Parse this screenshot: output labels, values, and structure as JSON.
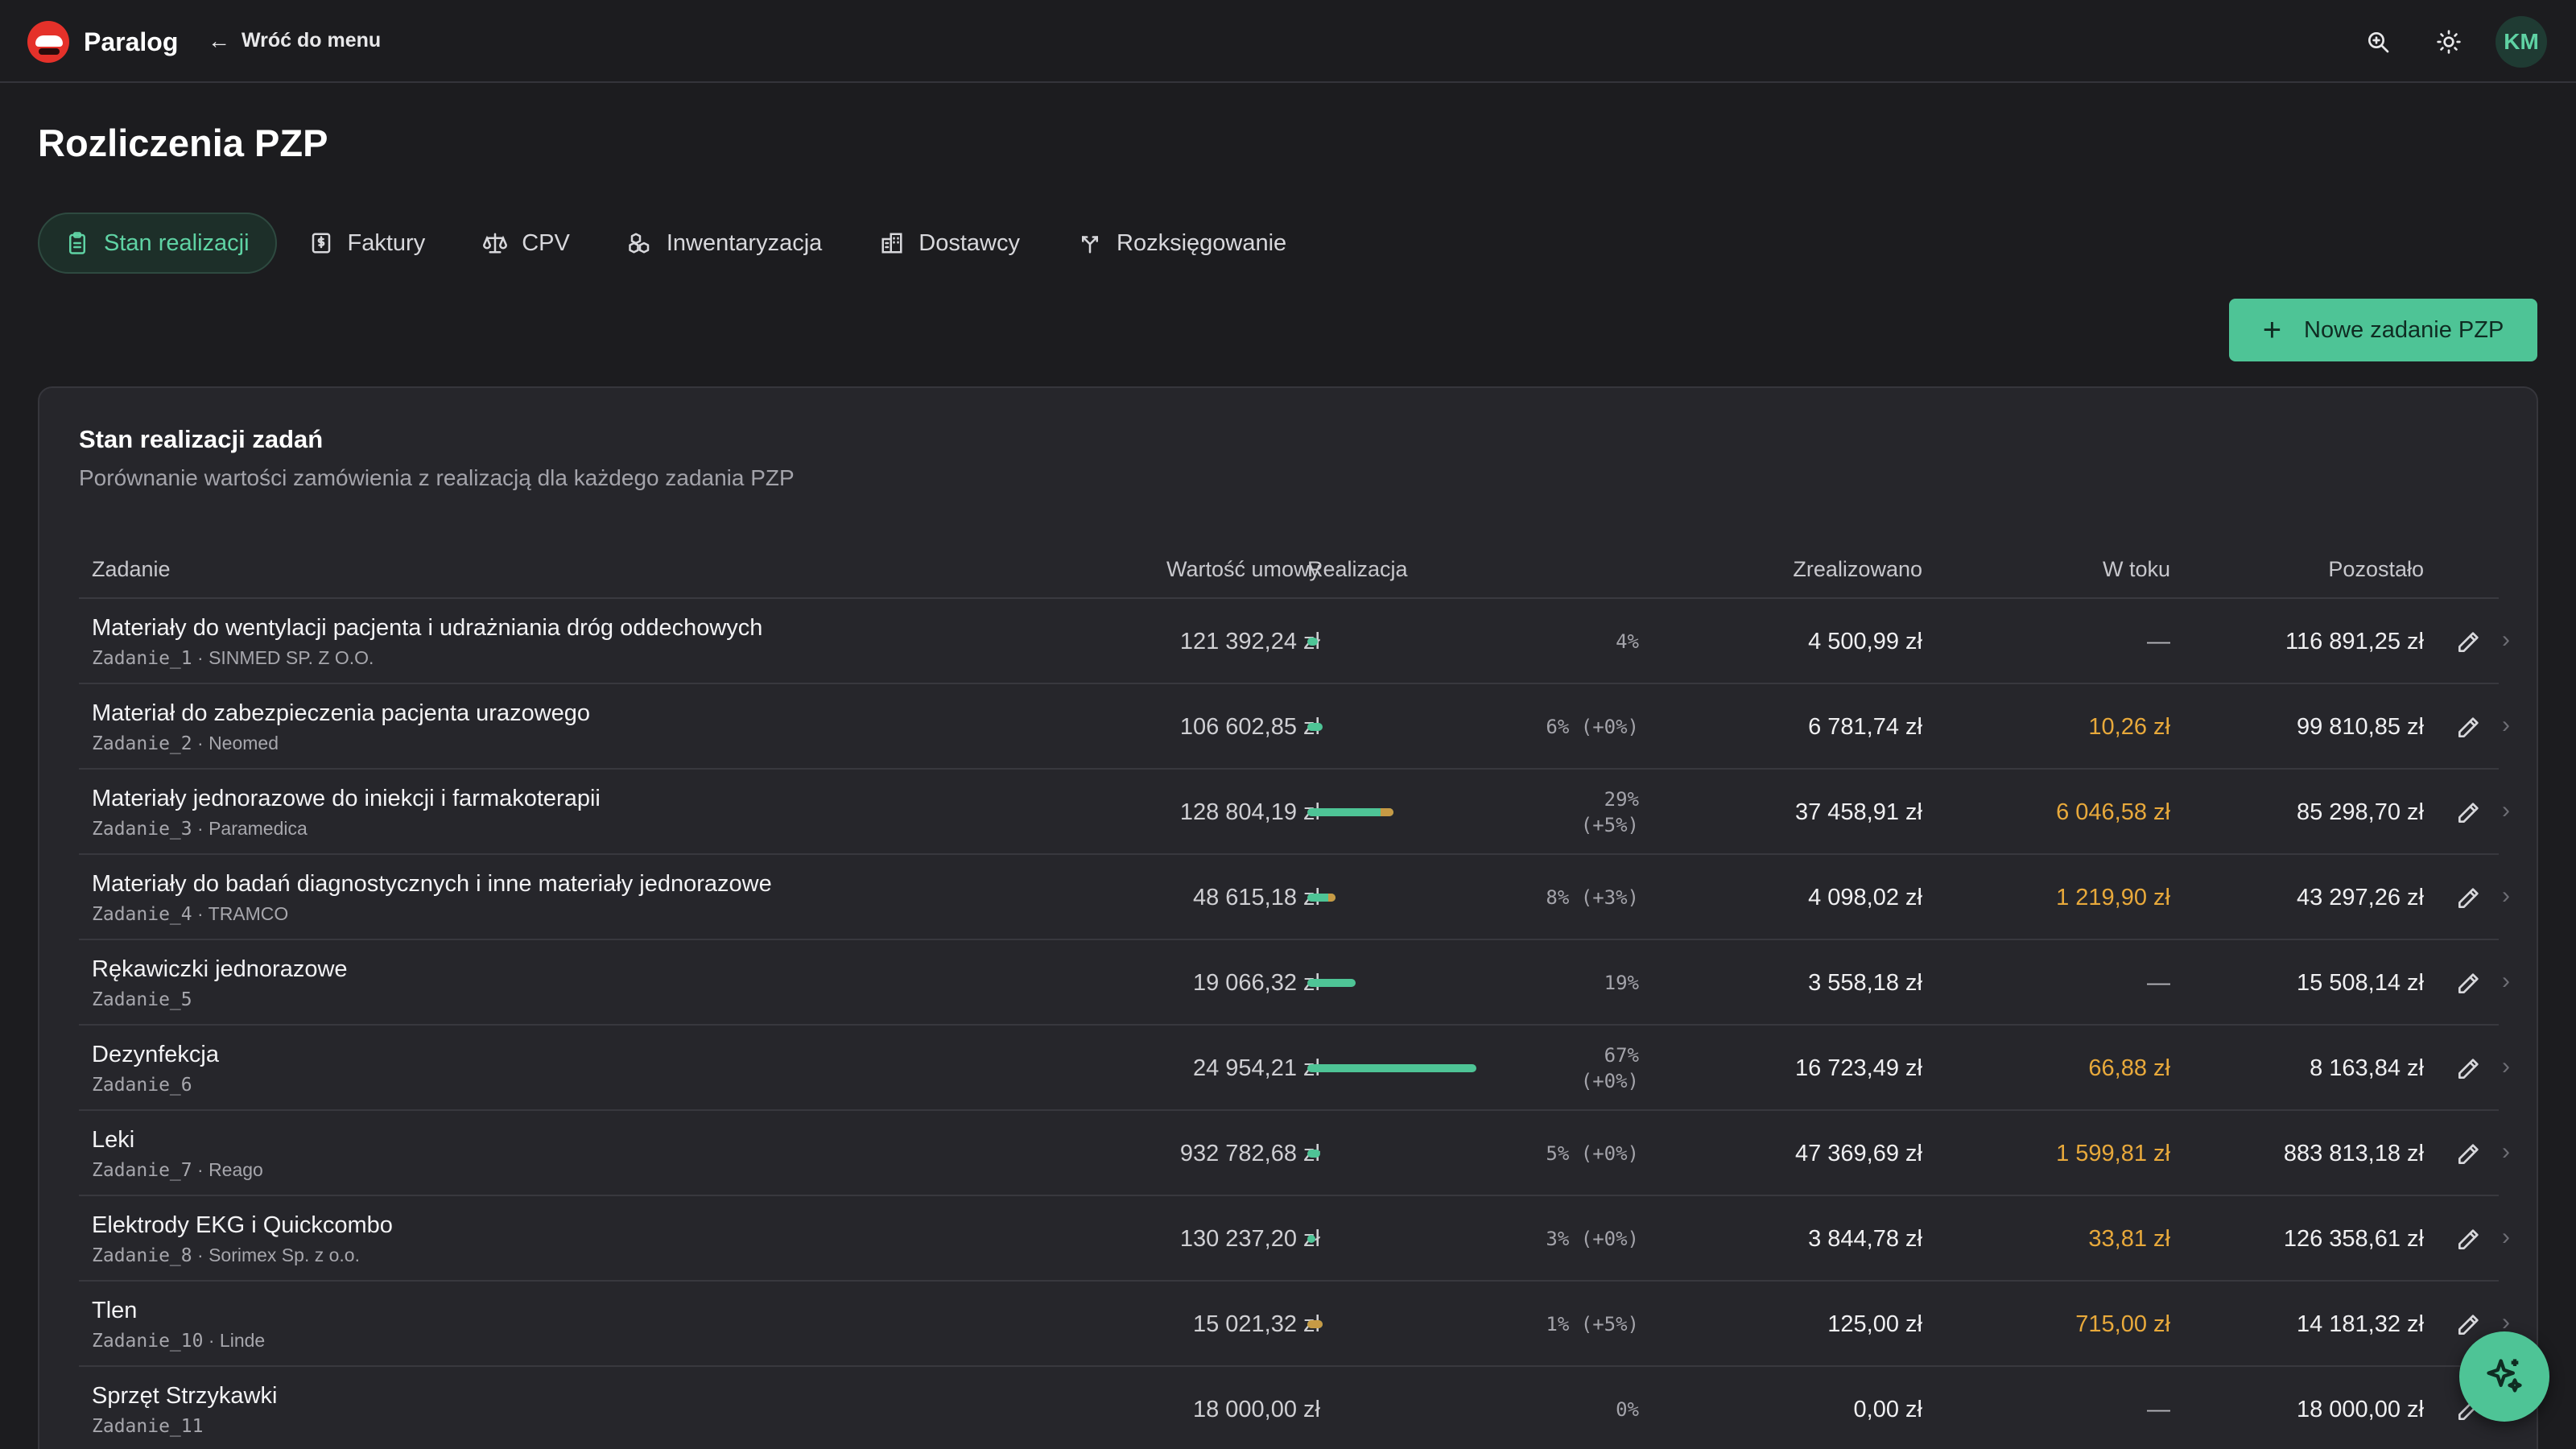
{
  "app": {
    "name": "Paralog",
    "back_label": "Wróć do menu",
    "user_initials": "KM"
  },
  "page": {
    "title": "Rozliczenia PZP"
  },
  "tabs": [
    {
      "label": "Stan realizacji",
      "icon": "clipboard-icon",
      "active": true
    },
    {
      "label": "Faktury",
      "icon": "invoice-icon",
      "active": false
    },
    {
      "label": "CPV",
      "icon": "scale-icon",
      "active": false
    },
    {
      "label": "Inwentaryzacja",
      "icon": "boxes-icon",
      "active": false
    },
    {
      "label": "Dostawcy",
      "icon": "building-icon",
      "active": false
    },
    {
      "label": "Rozksięgowanie",
      "icon": "split-icon",
      "active": false
    }
  ],
  "new_button": {
    "label": "Nowe zadanie PZP",
    "icon": "plus-icon"
  },
  "card": {
    "title": "Stan realizacji zadań",
    "subtitle": "Porównanie wartości zamówienia z realizacją dla każdego zadania PZP"
  },
  "columns": {
    "task": "Zadanie",
    "contract_value": "Wartość umowy",
    "progress": "Realizacja",
    "realized": "Zrealizowano",
    "in_progress": "W toku",
    "remaining": "Pozostało"
  },
  "rows": [
    {
      "name": "Materiały do wentylacji pacjenta i udrażniania dróg oddechowych",
      "code": "Zadanie_1",
      "supplier": " · SINMED SP. Z O.O.",
      "value": "121 392,24 zł",
      "progress_line1": "4%",
      "progress_line2": "",
      "realized_frac": 0.04,
      "pending_frac": 0,
      "realized": "4 500,99 zł",
      "in_progress": "—",
      "remaining": "116 891,25 zł"
    },
    {
      "name": "Materiał do zabezpieczenia pacjenta urazowego",
      "code": "Zadanie_2",
      "supplier": " · Neomed",
      "value": "106 602,85 zł",
      "progress_line1": "6% (+0%)",
      "progress_line2": "",
      "realized_frac": 0.06,
      "pending_frac": 0,
      "realized": "6 781,74 zł",
      "in_progress": "10,26 zł",
      "remaining": "99 810,85 zł"
    },
    {
      "name": "Materiały jednorazowe do iniekcji i farmakoterapii",
      "code": "Zadanie_3",
      "supplier": " · Paramedica",
      "value": "128 804,19 zł",
      "progress_line1": "29%",
      "progress_line2": "(+5%)",
      "realized_frac": 0.29,
      "pending_frac": 0.05,
      "realized": "37 458,91 zł",
      "in_progress": "6 046,58 zł",
      "remaining": "85 298,70 zł"
    },
    {
      "name": "Materiały do badań diagnostycznych i inne materiały jednorazowe",
      "code": "Zadanie_4",
      "supplier": " · TRAMCO",
      "value": "48 615,18 zł",
      "progress_line1": "8% (+3%)",
      "progress_line2": "",
      "realized_frac": 0.08,
      "pending_frac": 0.03,
      "realized": "4 098,02 zł",
      "in_progress": "1 219,90 zł",
      "remaining": "43 297,26 zł"
    },
    {
      "name": "Rękawiczki jednorazowe",
      "code": "Zadanie_5",
      "supplier": "",
      "value": "19 066,32 zł",
      "progress_line1": "19%",
      "progress_line2": "",
      "realized_frac": 0.19,
      "pending_frac": 0,
      "realized": "3 558,18 zł",
      "in_progress": "—",
      "remaining": "15 508,14 zł"
    },
    {
      "name": "Dezynfekcja",
      "code": "Zadanie_6",
      "supplier": "",
      "value": "24 954,21 zł",
      "progress_line1": "67%",
      "progress_line2": "(+0%)",
      "realized_frac": 0.67,
      "pending_frac": 0,
      "realized": "16 723,49 zł",
      "in_progress": "66,88 zł",
      "remaining": "8 163,84 zł"
    },
    {
      "name": "Leki",
      "code": "Zadanie_7",
      "supplier": " · Reago",
      "value": "932 782,68 zł",
      "progress_line1": "5% (+0%)",
      "progress_line2": "",
      "realized_frac": 0.05,
      "pending_frac": 0,
      "realized": "47 369,69 zł",
      "in_progress": "1 599,81 zł",
      "remaining": "883 813,18 zł"
    },
    {
      "name": "Elektrody EKG i Quickcombo",
      "code": "Zadanie_8",
      "supplier": " · Sorimex Sp. z o.o.",
      "value": "130 237,20 zł",
      "progress_line1": "3% (+0%)",
      "progress_line2": "",
      "realized_frac": 0.03,
      "pending_frac": 0,
      "realized": "3 844,78 zł",
      "in_progress": "33,81 zł",
      "remaining": "126 358,61 zł"
    },
    {
      "name": "Tlen",
      "code": "Zadanie_10",
      "supplier": " · Linde",
      "value": "15 021,32 zł",
      "progress_line1": "1% (+5%)",
      "progress_line2": "",
      "realized_frac": 0.01,
      "pending_frac": 0.05,
      "realized": "125,00 zł",
      "in_progress": "715,00 zł",
      "remaining": "14 181,32 zł"
    },
    {
      "name": "Sprzęt Strzykawki",
      "code": "Zadanie_11",
      "supplier": "",
      "value": "18 000,00 zł",
      "progress_line1": "0%",
      "progress_line2": "",
      "realized_frac": 0,
      "pending_frac": 0,
      "realized": "0,00 zł",
      "in_progress": "—",
      "remaining": "18 000,00 zł"
    }
  ],
  "colors": {
    "accent": "#4ec496",
    "pending": "#e8a93b",
    "background": "#1c1c1f",
    "card": "#26262b"
  }
}
